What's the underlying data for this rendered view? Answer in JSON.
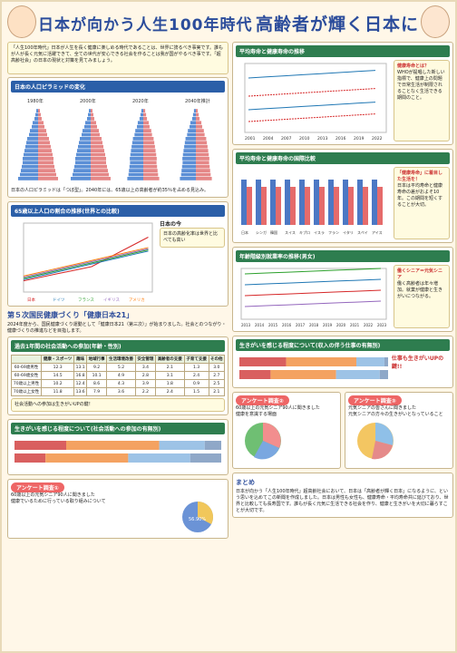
{
  "title_left": "日本が向かう人生100年時代",
  "title_right": "高齢者が輝く日本に",
  "intro": "「人生100年時代」日本が人生を長く健康に楽しめる時代であることは、世界に誇るべき事実です。誰もが人が長く元気に活躍できて、全ての世代が安心できる社会を作ることは我が国がやるべき事です。「超高齢社会」の日本の現状と対策を見てみましょう。",
  "pyramid": {
    "header": "日本の人口ピラミッドの変化",
    "years": [
      "1980年",
      "2000年",
      "2020年",
      "2040年推計"
    ]
  },
  "pyramid_note": "日本の人口ピラミッドは「つぼ型」。2040年には、65歳以上の高齢者が約35％を占める見込み。",
  "line65": {
    "header": "65歳以上人口の割合の推移(世界との比較)",
    "legend": [
      "日本",
      "ドイツ",
      "フランス",
      "イギリス",
      "アメリカ"
    ],
    "note_title": "日本の今",
    "note": "日本の高齢化率は世界と比べても高い"
  },
  "sect_health": "第５次国民健康づくり「健康日本21」",
  "health_text": "2024年度から、国民健康づくり運動として「健康日本21（第三次）」が始まりました。社会とのつながり・健康づくりの推進などを目指します。",
  "social": {
    "header": "過去1年間の社会活動への参加(年齢・性別)",
    "cols": [
      "健康・スポーツ",
      "趣味",
      "地域行事",
      "生活環境改善",
      "安全管理",
      "高齢者の支援",
      "子育て支援",
      "その他"
    ],
    "rows": [
      [
        "60-69歳男性",
        "12.3",
        "13.1",
        "9.2",
        "5.2",
        "3.4",
        "2.1",
        "1.3",
        "3.0"
      ],
      [
        "60-69歳女性",
        "14.5",
        "16.8",
        "10.1",
        "4.9",
        "2.8",
        "3.1",
        "2.4",
        "2.7"
      ],
      [
        "70歳以上男性",
        "10.2",
        "12.4",
        "8.6",
        "4.3",
        "3.9",
        "1.8",
        "0.9",
        "2.5"
      ],
      [
        "70歳以上女性",
        "11.8",
        "13.6",
        "7.9",
        "3.6",
        "2.2",
        "2.4",
        "1.5",
        "2.1"
      ]
    ]
  },
  "social_note": "社会活動への参加は生きがいUPの鍵！",
  "ikigai_left": {
    "header": "生きがいを感じる程度について(社会活動への参加の有無別)",
    "cats": [
      "十分感じている",
      "多少感じている",
      "あまり感じていない",
      "まったく感じていない"
    ]
  },
  "survey1": {
    "title": "アンケート調査①",
    "sub": "60歳以上の元気シニア90人に聞きました",
    "q": "健康でいるために行っている取り組みについて",
    "pie_label": "56.90%"
  },
  "right_line1": {
    "header": "平均寿命と健康寿命の推移",
    "years": [
      "2001",
      "2004",
      "2007",
      "2010",
      "2013",
      "2016",
      "2019",
      "2022"
    ]
  },
  "right_note1_title": "健康寿命とは？",
  "right_note1": "WHOが提唱した新しい指標で、健康上の問題で日常生活が制限されることなく生活できる期間のこと。",
  "right_bar": {
    "header": "平均寿命と健康寿命の国際比較",
    "countries": [
      "日本",
      "シンガポール",
      "韓国",
      "スイス",
      "キプロス",
      "イスラエル",
      "フランス",
      "イタリア",
      "スペイン",
      "アイスランド"
    ]
  },
  "right_note2_title": "「健康寿命」に着目した生活を！",
  "right_note2": "日本は平均寿命と健康寿命の差がおよそ10年。この期間を短くすることが大切。",
  "employ": {
    "header": "年齢階級別就業率の推移(男女)",
    "years": [
      "2013",
      "2014",
      "2015",
      "2016",
      "2017",
      "2018",
      "2019",
      "2020",
      "2021",
      "2022",
      "2023"
    ]
  },
  "employ_note_title": "働くシニア＝元気シニア",
  "employ_note": "働く高齢者は年々増加。就業が健康と生きがいにつながる。",
  "ikigai_right": {
    "header": "生きがいを感じる程度について(収入の伴う仕事の有無別)",
    "note_title": "仕事も生きがいUPの鍵!!"
  },
  "survey2": {
    "title": "アンケート調査②",
    "sub": "60歳以上の元気シニア90人に聞きました",
    "q": "健康を意識する場面"
  },
  "survey3": {
    "title": "アンケート調査③",
    "sub": "元気シニアの皆さんに聞きました",
    "q": "元気シニアの方々の生きがいとなっていること"
  },
  "summary_title": "まとめ",
  "summary": "日本が向かう「人生100年時代」超高齢社会において、日本は「高齢者が輝く日本」になるように、という思いを込めてこの新聞を作成しました。日本は男性も女性も、健康寿命・平均寿命共に延びており、世界と比較しても長寿国です。誰もが長く元気に生活できる社会を作り、健康と生きがいを大切に暮らすことが大切です。"
}
